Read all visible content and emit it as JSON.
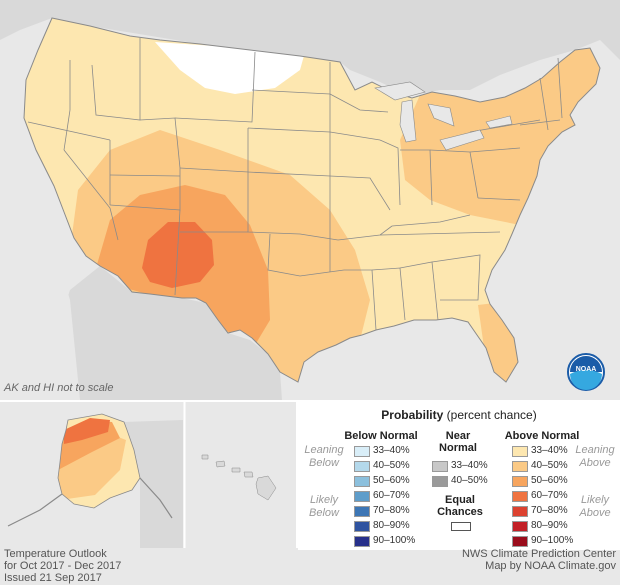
{
  "note": "AK and HI not to scale",
  "credits_left": [
    "Temperature Outlook",
    "for Oct 2017 - Dec 2017",
    "Issued 21 Sep 2017"
  ],
  "credits_right": [
    "NWS Climate Prediction Center",
    "Map by NOAA Climate.gov"
  ],
  "logo_text": "NOAA",
  "legend": {
    "title_bold": "Probability",
    "title_rest": " (percent chance)",
    "below_heading": "Below Normal",
    "near_heading_1": "Near",
    "near_heading_2": "Normal",
    "above_heading": "Above Normal",
    "leaning_below_1": "Leaning",
    "leaning_below_2": "Below",
    "likely_below_1": "Likely",
    "likely_below_2": "Below",
    "leaning_above_1": "Leaning",
    "leaning_above_2": "Above",
    "likely_above_1": "Likely",
    "likely_above_2": "Above",
    "equal_1": "Equal",
    "equal_2": "Chances",
    "below": [
      {
        "label": "33–40%",
        "color": "#d9eef8"
      },
      {
        "label": "40–50%",
        "color": "#b4d9ec"
      },
      {
        "label": "50–60%",
        "color": "#8cc0dd"
      },
      {
        "label": "60–70%",
        "color": "#5e9dca"
      },
      {
        "label": "70–80%",
        "color": "#3d76b5"
      },
      {
        "label": "80–90%",
        "color": "#2f53a0"
      },
      {
        "label": "90–100%",
        "color": "#27308a"
      }
    ],
    "near": [
      {
        "label": "33–40%",
        "color": "#c8c8c8"
      },
      {
        "label": "40–50%",
        "color": "#9a9a9a"
      }
    ],
    "above": [
      {
        "label": "33–40%",
        "color": "#fde7b0"
      },
      {
        "label": "40–50%",
        "color": "#fbca86"
      },
      {
        "label": "50–60%",
        "color": "#f7a55e"
      },
      {
        "label": "60–70%",
        "color": "#ef7340"
      },
      {
        "label": "70–80%",
        "color": "#dc4230"
      },
      {
        "label": "80–90%",
        "color": "#c21f26"
      },
      {
        "label": "90–100%",
        "color": "#9a0d1c"
      }
    ]
  },
  "map_colors": {
    "equal": "#ffffff",
    "a33": "#fde7b0",
    "a40": "#fbca86",
    "a50": "#f7a55e",
    "a60": "#ef7340",
    "land_gray": "#d9d9d9",
    "water": "#e8e8e8",
    "border": "#8a8a8a"
  }
}
